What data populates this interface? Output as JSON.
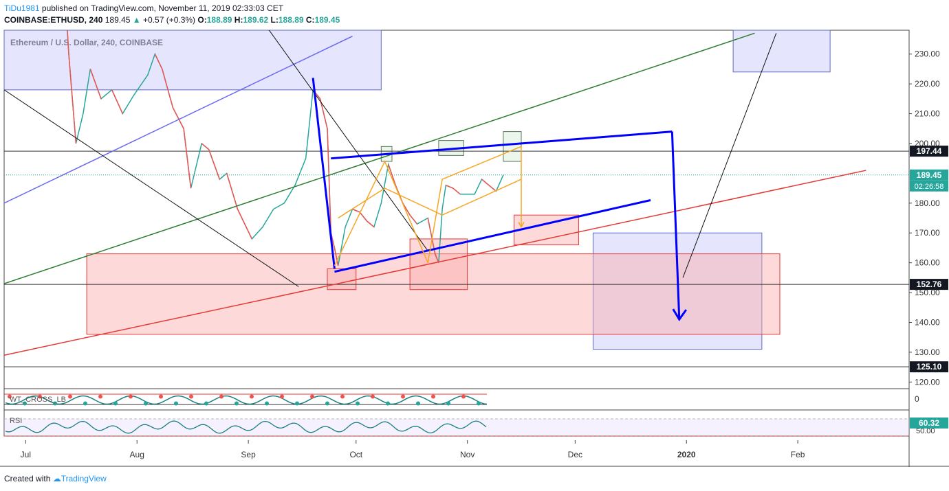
{
  "header": {
    "author": "TiDu1981",
    "published_text": " published on TradingView.com, November 11, 2019 02:33:03 CET",
    "symbol": "COINBASE:ETHUSD, 240",
    "last": "189.45",
    "change_arrow": "▲",
    "change": "+0.57 (+0.3%)",
    "o_label": "O:",
    "o": "188.89",
    "h_label": "H:",
    "h": "189.62",
    "l_label": "L:",
    "l": "188.89",
    "c_label": "C:",
    "c": "189.45"
  },
  "footer": {
    "created_with": "Created with",
    "brand": "TradingView"
  },
  "colors": {
    "up": "#26a69a",
    "down": "#ef5350",
    "blue": "#0000ff",
    "green": "#2e7d32",
    "red": "#e53935",
    "orange": "#f5a623",
    "box_blue": "#dcdcfc",
    "box_red": "#fcd6d6"
  },
  "chart_data": {
    "type": "line",
    "title": "Ethereum / U.S. Dollar, 240, COINBASE",
    "x_ticks": [
      "Jul",
      "Aug",
      "Sep",
      "Oct",
      "Nov",
      "Dec",
      "2020",
      "Feb"
    ],
    "y_ticks": [
      "230.00",
      "220.00",
      "210.00",
      "200.00",
      "180.00",
      "170.00",
      "160.00",
      "150.00",
      "140.00",
      "130.00",
      "120.00"
    ],
    "ylim": [
      118,
      238
    ],
    "price_labels": [
      {
        "value": 197.44,
        "text": "197.44",
        "style": "dark"
      },
      {
        "value": 189.45,
        "text": "189.45",
        "style": "green"
      },
      {
        "value": 152.76,
        "text": "152.76",
        "style": "dark"
      },
      {
        "value": 125.1,
        "text": "125.10",
        "style": "dark"
      }
    ],
    "countdown": "02:26:58",
    "series": [
      {
        "name": "ETHUSD",
        "values": [
          {
            "d": "2019-06-25",
            "v": 310
          },
          {
            "d": "2019-07-02",
            "v": 290
          },
          {
            "d": "2019-07-08",
            "v": 312
          },
          {
            "d": "2019-07-10",
            "v": 290
          },
          {
            "d": "2019-07-13",
            "v": 230
          },
          {
            "d": "2019-07-15",
            "v": 200
          },
          {
            "d": "2019-07-17",
            "v": 210
          },
          {
            "d": "2019-07-19",
            "v": 225
          },
          {
            "d": "2019-07-22",
            "v": 215
          },
          {
            "d": "2019-07-25",
            "v": 218
          },
          {
            "d": "2019-07-28",
            "v": 210
          },
          {
            "d": "2019-07-31",
            "v": 216
          },
          {
            "d": "2019-08-04",
            "v": 223
          },
          {
            "d": "2019-08-06",
            "v": 230
          },
          {
            "d": "2019-08-08",
            "v": 225
          },
          {
            "d": "2019-08-11",
            "v": 212
          },
          {
            "d": "2019-08-14",
            "v": 205
          },
          {
            "d": "2019-08-16",
            "v": 185
          },
          {
            "d": "2019-08-19",
            "v": 200
          },
          {
            "d": "2019-08-21",
            "v": 198
          },
          {
            "d": "2019-08-24",
            "v": 188
          },
          {
            "d": "2019-08-26",
            "v": 190
          },
          {
            "d": "2019-08-29",
            "v": 178
          },
          {
            "d": "2019-09-02",
            "v": 168
          },
          {
            "d": "2019-09-05",
            "v": 172
          },
          {
            "d": "2019-09-08",
            "v": 178
          },
          {
            "d": "2019-09-11",
            "v": 180
          },
          {
            "d": "2019-09-14",
            "v": 186
          },
          {
            "d": "2019-09-17",
            "v": 195
          },
          {
            "d": "2019-09-19",
            "v": 218
          },
          {
            "d": "2019-09-21",
            "v": 215
          },
          {
            "d": "2019-09-23",
            "v": 205
          },
          {
            "d": "2019-09-24",
            "v": 170
          },
          {
            "d": "2019-09-25",
            "v": 165
          },
          {
            "d": "2019-09-26",
            "v": 159
          },
          {
            "d": "2019-09-28",
            "v": 172
          },
          {
            "d": "2019-09-30",
            "v": 178
          },
          {
            "d": "2019-10-02",
            "v": 177
          },
          {
            "d": "2019-10-04",
            "v": 174
          },
          {
            "d": "2019-10-06",
            "v": 172
          },
          {
            "d": "2019-10-08",
            "v": 180
          },
          {
            "d": "2019-10-10",
            "v": 193
          },
          {
            "d": "2019-10-12",
            "v": 186
          },
          {
            "d": "2019-10-14",
            "v": 180
          },
          {
            "d": "2019-10-16",
            "v": 176
          },
          {
            "d": "2019-10-18",
            "v": 173
          },
          {
            "d": "2019-10-21",
            "v": 175
          },
          {
            "d": "2019-10-23",
            "v": 163
          },
          {
            "d": "2019-10-24",
            "v": 160
          },
          {
            "d": "2019-10-25",
            "v": 178
          },
          {
            "d": "2019-10-26",
            "v": 186
          },
          {
            "d": "2019-10-28",
            "v": 185
          },
          {
            "d": "2019-10-30",
            "v": 183
          },
          {
            "d": "2019-11-01",
            "v": 183
          },
          {
            "d": "2019-11-03",
            "v": 183
          },
          {
            "d": "2019-11-05",
            "v": 188
          },
          {
            "d": "2019-11-07",
            "v": 186
          },
          {
            "d": "2019-11-09",
            "v": 184
          },
          {
            "d": "2019-11-11",
            "v": 189.45
          }
        ]
      }
    ],
    "drawings": [
      {
        "kind": "line",
        "color": "#2e7d32",
        "from": {
          "d": "2019-06-25",
          "v": 153
        },
        "to": {
          "d": "2020-01-20",
          "v": 237
        }
      },
      {
        "kind": "line",
        "color": "#e53935",
        "from": {
          "d": "2019-06-25",
          "v": 129
        },
        "to": {
          "d": "2020-02-20",
          "v": 191
        }
      },
      {
        "kind": "line",
        "color": "#6b6bf0",
        "from": {
          "d": "2019-06-25",
          "v": 180
        },
        "to": {
          "d": "2019-09-30",
          "v": 236
        }
      },
      {
        "kind": "line",
        "color": "#111111",
        "from": {
          "d": "2019-06-25",
          "v": 218
        },
        "to": {
          "d": "2019-09-15",
          "v": 152
        }
      },
      {
        "kind": "line",
        "color": "#111111",
        "from": {
          "d": "2019-09-05",
          "v": 241
        },
        "to": {
          "d": "2019-10-21",
          "v": 164
        }
      },
      {
        "kind": "line",
        "color": "#111111",
        "from": {
          "d": "2019-12-31",
          "v": 155
        },
        "to": {
          "d": "2020-01-26",
          "v": 237
        }
      },
      {
        "kind": "line",
        "color": "#0000ff",
        "from": {
          "d": "2019-09-24",
          "v": 195
        },
        "to": {
          "d": "2019-12-28",
          "v": 204
        }
      },
      {
        "kind": "line",
        "color": "#0000ff",
        "from": {
          "d": "2019-09-25",
          "v": 157
        },
        "to": {
          "d": "2019-12-22",
          "v": 181
        }
      },
      {
        "kind": "line",
        "color": "#0000ff",
        "from": {
          "d": "2019-09-19",
          "v": 222
        },
        "to": {
          "d": "2019-09-25",
          "v": 158
        }
      },
      {
        "kind": "polyline",
        "color": "#0000ff",
        "points": [
          {
            "d": "2019-12-28",
            "v": 204
          },
          {
            "d": "2019-12-30",
            "v": 141
          }
        ]
      },
      {
        "kind": "polyline",
        "color": "#f5a623",
        "points": [
          {
            "d": "2019-09-25",
            "v": 159
          },
          {
            "d": "2019-10-09",
            "v": 194
          },
          {
            "d": "2019-10-21",
            "v": 160
          },
          {
            "d": "2019-10-25",
            "v": 188
          },
          {
            "d": "2019-11-16",
            "v": 199
          }
        ]
      },
      {
        "kind": "polyline",
        "color": "#f5a623",
        "points": [
          {
            "d": "2019-09-26",
            "v": 175
          },
          {
            "d": "2019-10-09",
            "v": 185
          },
          {
            "d": "2019-10-25",
            "v": 176
          },
          {
            "d": "2019-11-16",
            "v": 188
          }
        ]
      },
      {
        "kind": "polyline",
        "color": "#f5a623",
        "points": [
          {
            "d": "2019-11-16",
            "v": 199
          },
          {
            "d": "2019-11-16",
            "v": 172
          }
        ]
      }
    ],
    "boxes": [
      {
        "color": "blue",
        "d1": "2019-06-25",
        "d2": "2019-10-08",
        "v1": 218,
        "v2": 238
      },
      {
        "color": "blue",
        "d1": "2020-01-14",
        "d2": "2020-02-10",
        "v1": 224,
        "v2": 238
      },
      {
        "color": "blue",
        "d1": "2019-12-06",
        "d2": "2020-01-22",
        "v1": 131,
        "v2": 170
      },
      {
        "color": "red",
        "d1": "2019-07-18",
        "d2": "2020-01-27",
        "v1": 136,
        "v2": 163
      },
      {
        "color": "red",
        "d1": "2019-09-23",
        "d2": "2019-10-01",
        "v1": 151,
        "v2": 158
      },
      {
        "color": "red",
        "d1": "2019-10-16",
        "d2": "2019-11-01",
        "v1": 151,
        "v2": 168
      },
      {
        "color": "red",
        "d1": "2019-11-14",
        "d2": "2019-12-02",
        "v1": 166,
        "v2": 176
      },
      {
        "color": "green",
        "d1": "2019-10-08",
        "d2": "2019-10-11",
        "v1": 194,
        "v2": 199
      },
      {
        "color": "green",
        "d1": "2019-10-24",
        "d2": "2019-10-31",
        "v1": 196,
        "v2": 201
      },
      {
        "color": "green",
        "d1": "2019-11-11",
        "d2": "2019-11-16",
        "v1": 194,
        "v2": 204
      }
    ],
    "indicators": [
      {
        "name": "WT_CROSS_LB",
        "label": "WT_CROSS_LB",
        "value": "0"
      },
      {
        "name": "RSI",
        "label": "RSI",
        "value": "60.32",
        "sub_value": "50.00"
      }
    ]
  }
}
